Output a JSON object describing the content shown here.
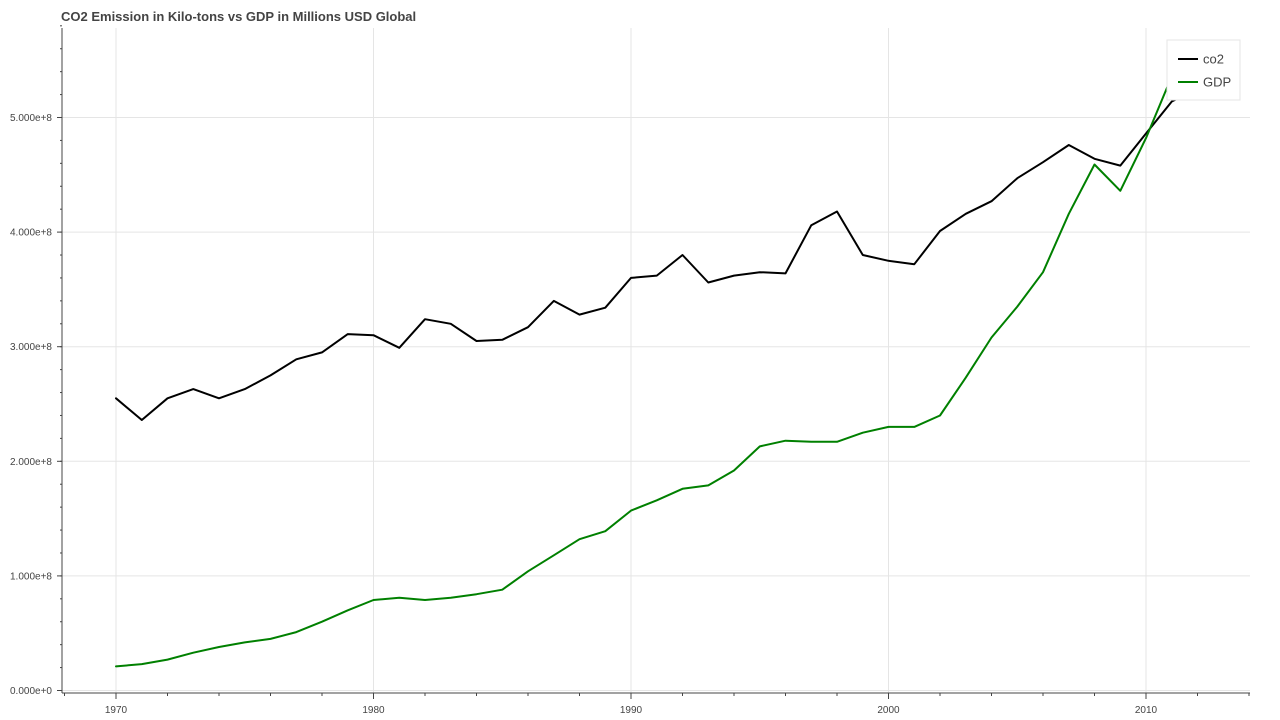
{
  "chart_data": {
    "type": "line",
    "title": "CO2 Emission in Kilo-tons vs GDP in Millions USD Global",
    "xlabel": "",
    "ylabel": "",
    "xlim": [
      1970,
      2014
    ],
    "ylim": [
      0,
      580000000
    ],
    "x_ticks": [
      1970,
      1980,
      1990,
      2000,
      2010
    ],
    "y_ticks": [
      0,
      100000000,
      200000000,
      300000000,
      400000000,
      500000000
    ],
    "y_tick_labels": [
      "0.000e+0",
      "1.000e+8",
      "2.000e+8",
      "3.000e+8",
      "4.000e+8",
      "5.000e+8"
    ],
    "grid": true,
    "legend_position": "top-right",
    "x": [
      1970,
      1971,
      1972,
      1973,
      1974,
      1975,
      1976,
      1977,
      1978,
      1979,
      1980,
      1981,
      1982,
      1983,
      1984,
      1985,
      1986,
      1987,
      1988,
      1989,
      1990,
      1991,
      1992,
      1993,
      1994,
      1995,
      1996,
      1997,
      1998,
      1999,
      2000,
      2001,
      2002,
      2003,
      2004,
      2005,
      2006,
      2007,
      2008,
      2009,
      2010,
      2011,
      2012
    ],
    "series": [
      {
        "name": "co2",
        "color": "#000000",
        "values": [
          255000000,
          236000000,
          255000000,
          263000000,
          255000000,
          263000000,
          275000000,
          289000000,
          295000000,
          311000000,
          310000000,
          299000000,
          324000000,
          320000000,
          305000000,
          306000000,
          317000000,
          340000000,
          328000000,
          334000000,
          360000000,
          362000000,
          380000000,
          356000000,
          362000000,
          365000000,
          364000000,
          406000000,
          418000000,
          380000000,
          375000000,
          372000000,
          401000000,
          416000000,
          427000000,
          447000000,
          461000000,
          476000000,
          464000000,
          458000000,
          486000000,
          514000000,
          525000000
        ]
      },
      {
        "name": "GDP",
        "color": "#008000",
        "values": [
          21000000,
          23000000,
          27000000,
          33000000,
          38000000,
          42000000,
          45000000,
          51000000,
          60000000,
          70000000,
          79000000,
          81000000,
          79000000,
          81000000,
          84000000,
          88000000,
          104000000,
          118000000,
          132000000,
          139000000,
          157000000,
          166000000,
          176000000,
          179000000,
          192000000,
          213000000,
          218000000,
          217000000,
          217000000,
          225000000,
          230000000,
          230000000,
          240000000,
          273000000,
          308000000,
          335000000,
          365000000,
          416000000,
          459000000,
          436000000,
          482000000,
          536000000,
          530000000
        ]
      }
    ]
  }
}
